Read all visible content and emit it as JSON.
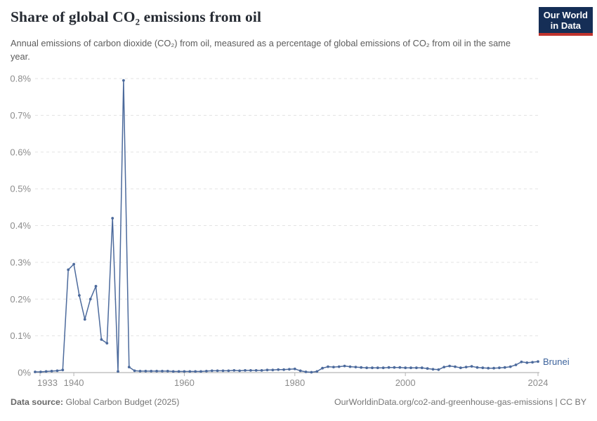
{
  "header": {
    "title": "Share of global CO₂ emissions from oil",
    "subtitle": "Annual emissions of carbon dioxide (CO₂) from oil, measured as a percentage of global emissions of CO₂ from oil in the same year.",
    "logo": {
      "line1": "Our World",
      "line2": "in Data",
      "bg_color": "#152e56",
      "accent_color": "#c0332d"
    }
  },
  "chart_data": {
    "type": "line",
    "title": "Share of global CO₂ emissions from oil",
    "xlabel": "",
    "ylabel": "",
    "xlim": [
      1933,
      2024
    ],
    "ylim": [
      0,
      0.8
    ],
    "grid": "horizontal-dashed",
    "legend_position": "end-of-line-label",
    "x_ticks": [
      1933,
      1940,
      1960,
      1980,
      2000,
      2024
    ],
    "y_ticks": {
      "values": [
        0,
        0.1,
        0.2,
        0.3,
        0.4,
        0.5,
        0.6,
        0.7,
        0.8
      ],
      "labels": [
        "0%",
        "0.1%",
        "0.2%",
        "0.3%",
        "0.4%",
        "0.5%",
        "0.6%",
        "0.7%",
        "0.8%"
      ]
    },
    "series": [
      {
        "name": "Brunei",
        "color": "#4c6a9c",
        "x": [
          1933,
          1934,
          1935,
          1936,
          1937,
          1938,
          1939,
          1940,
          1941,
          1942,
          1943,
          1944,
          1945,
          1946,
          1947,
          1948,
          1949,
          1950,
          1951,
          1952,
          1953,
          1954,
          1955,
          1956,
          1957,
          1958,
          1959,
          1960,
          1961,
          1962,
          1963,
          1964,
          1965,
          1966,
          1967,
          1968,
          1969,
          1970,
          1971,
          1972,
          1973,
          1974,
          1975,
          1976,
          1977,
          1978,
          1979,
          1980,
          1981,
          1982,
          1983,
          1984,
          1985,
          1986,
          1987,
          1988,
          1989,
          1990,
          1991,
          1992,
          1993,
          1994,
          1995,
          1996,
          1997,
          1998,
          1999,
          2000,
          2001,
          2002,
          2003,
          2004,
          2005,
          2006,
          2007,
          2008,
          2009,
          2010,
          2011,
          2012,
          2013,
          2014,
          2015,
          2016,
          2017,
          2018,
          2019,
          2020,
          2021,
          2022,
          2023,
          2024
        ],
        "values": [
          0.002,
          0.002,
          0.003,
          0.004,
          0.005,
          0.007,
          0.28,
          0.295,
          0.21,
          0.145,
          0.2,
          0.235,
          0.09,
          0.08,
          0.42,
          0.003,
          0.795,
          0.015,
          0.005,
          0.004,
          0.004,
          0.004,
          0.004,
          0.004,
          0.004,
          0.003,
          0.003,
          0.003,
          0.003,
          0.003,
          0.003,
          0.004,
          0.005,
          0.005,
          0.005,
          0.005,
          0.006,
          0.005,
          0.006,
          0.006,
          0.006,
          0.006,
          0.007,
          0.007,
          0.008,
          0.008,
          0.009,
          0.01,
          0.005,
          0.002,
          0.001,
          0.003,
          0.012,
          0.016,
          0.015,
          0.016,
          0.018,
          0.016,
          0.015,
          0.014,
          0.013,
          0.013,
          0.013,
          0.013,
          0.014,
          0.014,
          0.014,
          0.013,
          0.013,
          0.013,
          0.013,
          0.011,
          0.009,
          0.008,
          0.015,
          0.018,
          0.016,
          0.013,
          0.015,
          0.017,
          0.014,
          0.013,
          0.012,
          0.012,
          0.013,
          0.014,
          0.016,
          0.021,
          0.029,
          0.027,
          0.028,
          0.03
        ]
      }
    ],
    "colors": {
      "line": "#4c6a9c",
      "grid": "#e3e3e3",
      "axis": "#a5a5a5",
      "tick_text": "#8c8c8c",
      "end_label": "#3d639c"
    }
  },
  "footer": {
    "source_label": "Data source:",
    "source_value": " Global Carbon Budget (2025)",
    "right_text": "OurWorldinData.org/co2-and-greenhouse-gas-emissions | CC BY"
  }
}
